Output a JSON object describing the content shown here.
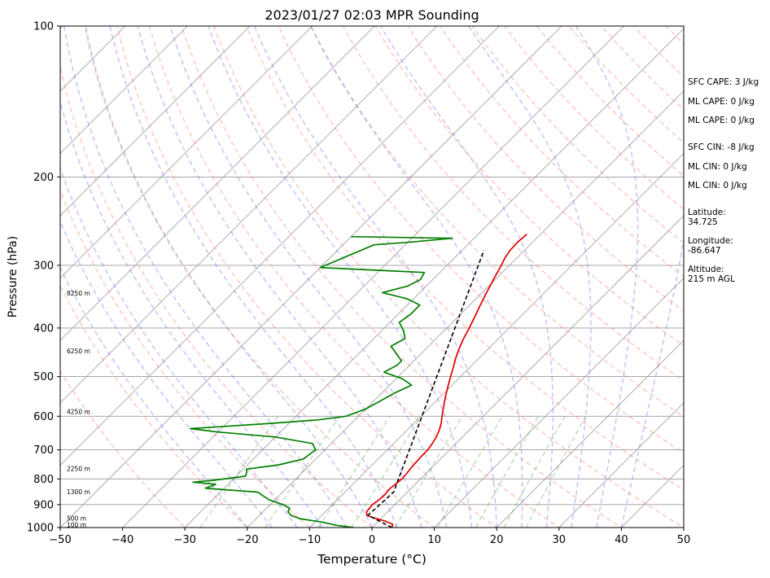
{
  "colors": {
    "temperature": "#e00000",
    "dewpoint": "#008000",
    "parcel": "#000000",
    "dry_adiabat": "#ff8080",
    "moist_adiabat": "#6060ff",
    "mixing_ratio": "#40a040",
    "isotherm": "#9a9a9a",
    "isobar": "#9a9a9a"
  },
  "chart_data": {
    "type": "skew-t",
    "title": "2023/01/27 02:03 MPR Sounding",
    "xlabel": "Temperature (°C)",
    "ylabel": "Pressure (hPa)",
    "xlim": [
      -50,
      50
    ],
    "ylim": [
      1000,
      100
    ],
    "y_scale": "log",
    "x_ticks": [
      "−50",
      "−40",
      "−30",
      "−20",
      "−10",
      "0",
      "10",
      "20",
      "30",
      "40",
      "50"
    ],
    "y_ticks": [
      "100",
      "200",
      "300",
      "400",
      "500",
      "600",
      "700",
      "800",
      "900",
      "1000"
    ],
    "grid": true,
    "series": [
      {
        "key": "temperature",
        "points": [
          [
            1000,
            3.2
          ],
          [
            985,
            2.8
          ],
          [
            970,
            1.0
          ],
          [
            955,
            -1.5
          ],
          [
            945,
            -2.8
          ],
          [
            930,
            -3.4
          ],
          [
            900,
            -3.6
          ],
          [
            880,
            -3.3
          ],
          [
            860,
            -3.2
          ],
          [
            840,
            -3.4
          ],
          [
            820,
            -3.2
          ],
          [
            800,
            -3.0
          ],
          [
            780,
            -3.1
          ],
          [
            760,
            -3.3
          ],
          [
            740,
            -3.4
          ],
          [
            720,
            -3.5
          ],
          [
            700,
            -3.5
          ],
          [
            680,
            -3.8
          ],
          [
            660,
            -4.2
          ],
          [
            640,
            -4.8
          ],
          [
            620,
            -5.6
          ],
          [
            600,
            -6.6
          ],
          [
            580,
            -7.6
          ],
          [
            560,
            -8.6
          ],
          [
            540,
            -9.6
          ],
          [
            520,
            -10.6
          ],
          [
            500,
            -11.6
          ],
          [
            480,
            -12.6
          ],
          [
            460,
            -13.7
          ],
          [
            440,
            -14.7
          ],
          [
            420,
            -15.6
          ],
          [
            400,
            -16.4
          ],
          [
            380,
            -17.3
          ],
          [
            360,
            -18.3
          ],
          [
            340,
            -19.3
          ],
          [
            320,
            -20.3
          ],
          [
            300,
            -21.3
          ],
          [
            290,
            -21.9
          ],
          [
            280,
            -22.3
          ],
          [
            270,
            -22.4
          ],
          [
            260,
            -22.2
          ]
        ]
      },
      {
        "key": "dewpoint",
        "points": [
          [
            1000,
            -3.0
          ],
          [
            990,
            -6.0
          ],
          [
            975,
            -9.0
          ],
          [
            960,
            -13.0
          ],
          [
            945,
            -15.0
          ],
          [
            930,
            -16.0
          ],
          [
            915,
            -16.3
          ],
          [
            900,
            -18.0
          ],
          [
            880,
            -21.0
          ],
          [
            865,
            -22.5
          ],
          [
            850,
            -24.0
          ],
          [
            835,
            -33.0
          ],
          [
            820,
            -32.0
          ],
          [
            812,
            -36.0
          ],
          [
            805,
            -33.0
          ],
          [
            790,
            -28.5
          ],
          [
            775,
            -29.0
          ],
          [
            765,
            -29.5
          ],
          [
            750,
            -25.0
          ],
          [
            730,
            -22.0
          ],
          [
            700,
            -21.5
          ],
          [
            680,
            -23.0
          ],
          [
            660,
            -30.0
          ],
          [
            645,
            -40.0
          ],
          [
            635,
            -45.0
          ],
          [
            620,
            -33.0
          ],
          [
            610,
            -26.0
          ],
          [
            600,
            -22.0
          ],
          [
            580,
            -20.0
          ],
          [
            560,
            -19.0
          ],
          [
            540,
            -18.0
          ],
          [
            520,
            -16.5
          ],
          [
            505,
            -19.0
          ],
          [
            490,
            -23.0
          ],
          [
            475,
            -22.0
          ],
          [
            465,
            -22.0
          ],
          [
            450,
            -24.0
          ],
          [
            435,
            -26.0
          ],
          [
            420,
            -25.0
          ],
          [
            405,
            -26.5
          ],
          [
            390,
            -28.5
          ],
          [
            375,
            -28.0
          ],
          [
            360,
            -28.0
          ],
          [
            350,
            -31.0
          ],
          [
            340,
            -36.0
          ],
          [
            330,
            -33.0
          ],
          [
            320,
            -32.0
          ],
          [
            310,
            -32.5
          ],
          [
            303,
            -50.0
          ],
          [
            273,
            -45.0
          ],
          [
            270,
            -40.0
          ],
          [
            265,
            -33.5
          ],
          [
            263,
            -50.0
          ]
        ]
      },
      {
        "key": "parcel",
        "points": [
          [
            1000,
            3.2
          ],
          [
            945,
            -2.6
          ],
          [
            850,
            -2.2
          ],
          [
            280,
            -26.5
          ]
        ]
      }
    ],
    "height_labels": [
      {
        "p": 1000,
        "text": "100 m"
      },
      {
        "p": 970,
        "text": "500 m"
      },
      {
        "p": 860,
        "text": "1300 m"
      },
      {
        "p": 772,
        "text": "2250 m"
      },
      {
        "p": 595,
        "text": "4250 m"
      },
      {
        "p": 450,
        "text": "6250 m"
      },
      {
        "p": 345,
        "text": "8250 m"
      }
    ],
    "annotations": [
      "SFC CAPE: 3 J/kg",
      "ML CAPE: 0 J/kg",
      "ML CAPE: 0 J/kg",
      "SFC CIN: -8 J/kg",
      "ML CIN: 0 J/kg",
      "ML CIN: 0 J/kg",
      "Latitude:",
      "34.725",
      "Longitude:",
      "-86.647",
      "Altitude:",
      "215 m AGL"
    ]
  }
}
